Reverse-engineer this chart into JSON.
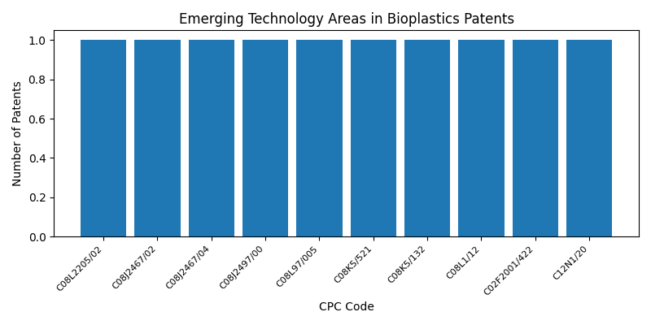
{
  "title": "Emerging Technology Areas in Bioplastics Patents",
  "xlabel": "CPC Code",
  "ylabel": "Number of Patents",
  "categories": [
    "C08L2205/02",
    "C08J2467/02",
    "C08J2467/04",
    "C08J2497/00",
    "C08L97/005",
    "C08K5/521",
    "C08K5/132",
    "C08L1/12",
    "C02F2001/422",
    "C12N1/20"
  ],
  "values": [
    1,
    1,
    1,
    1,
    1,
    1,
    1,
    1,
    1,
    1
  ],
  "bar_color": "#1f77b4",
  "ylim": [
    0,
    1.05
  ],
  "yticks": [
    0.0,
    0.2,
    0.4,
    0.6,
    0.8,
    1.0
  ],
  "figsize": [
    8,
    4
  ],
  "dpi": 100,
  "title_fontsize": 12,
  "xlabel_fontsize": 10,
  "ylabel_fontsize": 10,
  "tick_fontsize": 8,
  "tick_rotation": 45,
  "bar_width": 0.85
}
